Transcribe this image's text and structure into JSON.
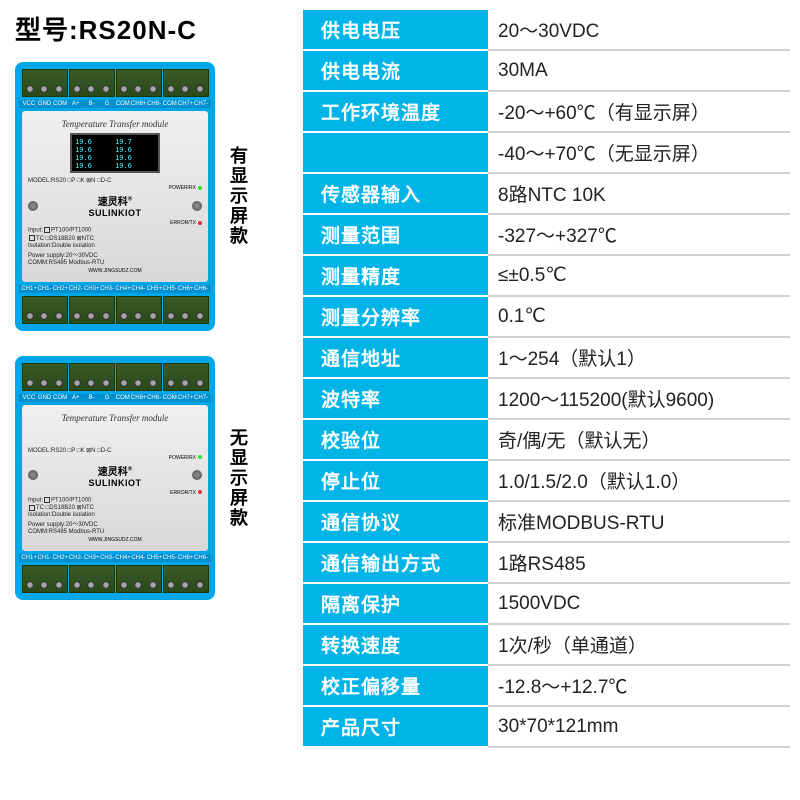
{
  "title": "型号:RS20N-C",
  "variants": [
    {
      "label": "有显示屏款",
      "has_screen": true
    },
    {
      "label": "无显示屏款",
      "has_screen": false
    }
  ],
  "device": {
    "module_title": "Temperature Transfer module",
    "model_left": "MODEL:RS20",
    "model_boxes": "□P □K ⊠N □D-C",
    "brand_cn": "速灵科",
    "brand_en": "SULINKIOT",
    "power_rx": "POWER/RX",
    "error_tx": "ERROR/TX",
    "input_label": "Input:",
    "input_opts1": "PT100/PT1000",
    "input_opts2": "TC □DS18B20 ⊠NTC",
    "isolation": "Isolation:Double isolation",
    "power": "Power supply:20～30VDC",
    "comm": "COMM:RS485 Modbus-RTU",
    "url": "WWW.JINGSUDZ.COM",
    "screen_vals": [
      "19.6",
      "19.7",
      "19.6",
      "19.6",
      "19.6",
      "19.6",
      "19.6",
      "19.6"
    ],
    "top_labels": [
      "VCC",
      "GND",
      "COM",
      "A+",
      "B-",
      "G",
      "COM",
      "CH8+",
      "CH8-",
      "COM",
      "CH7+",
      "CH7-"
    ],
    "bot_labels": [
      "CH1+",
      "CH1-",
      "CH2+",
      "CH2-",
      "CH3+",
      "CH3-",
      "CH4+",
      "CH4-",
      "CH5+",
      "CH5-",
      "CH6+",
      "CH6-"
    ]
  },
  "specs": [
    {
      "label": "供电电压",
      "value": "20～30VDC"
    },
    {
      "label": "供电电流",
      "value": "30MA"
    },
    {
      "label": "工作环境温度",
      "value": "-20～+60℃（有显示屏）"
    },
    {
      "label": "",
      "value": "-40～+70℃（无显示屏）"
    },
    {
      "label": "传感器输入",
      "value": " 8路NTC  10K"
    },
    {
      "label": "测量范围",
      "value": "-327～+327℃"
    },
    {
      "label": "测量精度",
      "value": "≤±0.5℃"
    },
    {
      "label": "测量分辨率",
      "value": "0.1℃"
    },
    {
      "label": "通信地址",
      "value": "1～254（默认1）"
    },
    {
      "label": "波特率",
      "value": "1200～115200(默认9600)"
    },
    {
      "label": "校验位",
      "value": "奇/偶/无（默认无）"
    },
    {
      "label": "停止位",
      "value": "1.0/1.5/2.0（默认1.0）"
    },
    {
      "label": "通信协议",
      "value": "标准MODBUS-RTU"
    },
    {
      "label": "通信输出方式",
      "value": "1路RS485"
    },
    {
      "label": "隔离保护",
      "value": "1500VDC"
    },
    {
      "label": "转换速度",
      "value": "1次/秒（单通道）"
    },
    {
      "label": "校正偏移量",
      "value": "-12.8～+12.7℃"
    },
    {
      "label": "产品尺寸",
      "value": "30*70*121mm"
    }
  ],
  "colors": {
    "header_bg": "#00b4e8",
    "device_blue": "#00a6e8"
  }
}
